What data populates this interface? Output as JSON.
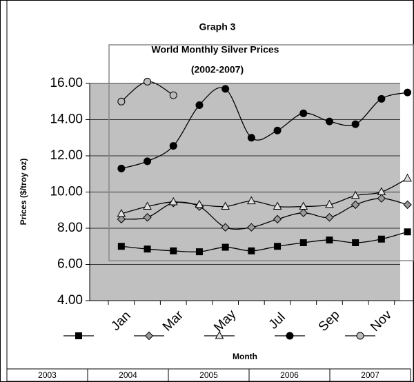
{
  "chart_data": {
    "type": "line",
    "title": "Graph 3",
    "subtitle": "World Monthly Silver Prices",
    "subtitle2": "(2002-2007)",
    "y_label": "Prices ($/troy oz)",
    "x_label": "Month",
    "categories": [
      "Jan",
      null,
      "Mar",
      null,
      "May",
      null,
      "Jul",
      null,
      "Sep",
      null,
      "Nov",
      null
    ],
    "ylim": [
      4,
      16
    ],
    "yticks": [
      {
        "value": 4,
        "label": "4.00"
      },
      {
        "value": 6,
        "label": "6.00"
      },
      {
        "value": 8,
        "label": "8.00"
      },
      {
        "value": 10,
        "label": "10.00"
      },
      {
        "value": 12,
        "label": "12.00"
      },
      {
        "value": 14,
        "label": "14.00"
      },
      {
        "value": 16,
        "label": "16.00"
      }
    ],
    "grid": true,
    "legend": "bottom",
    "series": [
      {
        "name": "2003",
        "marker": "square",
        "color": "#000000",
        "values": [
          7.0,
          6.85,
          6.75,
          6.7,
          6.95,
          6.75,
          7.0,
          7.2,
          7.35,
          7.2,
          7.4,
          7.8
        ]
      },
      {
        "name": "2004",
        "marker": "diamond",
        "color": "#999999",
        "values": [
          8.5,
          8.6,
          9.4,
          9.2,
          8.05,
          8.05,
          8.5,
          8.85,
          8.6,
          9.3,
          9.65,
          9.3
        ]
      },
      {
        "name": "2005",
        "marker": "triangle",
        "color": "#e0e0e0",
        "values": [
          8.8,
          9.2,
          9.45,
          9.3,
          9.2,
          9.5,
          9.2,
          9.2,
          9.3,
          9.8,
          10.0,
          10.75
        ]
      },
      {
        "name": "2006",
        "marker": "circle",
        "color": "#000000",
        "values": [
          11.3,
          11.7,
          12.55,
          14.8,
          15.7,
          13.0,
          13.4,
          14.35,
          13.9,
          13.75,
          15.15,
          15.5
        ]
      },
      {
        "name": "2007",
        "marker": "circle",
        "color": "#bbbbbb",
        "values": [
          15.0,
          16.1,
          15.35,
          null,
          null,
          null,
          null,
          null,
          null,
          null,
          null,
          null
        ]
      }
    ]
  }
}
